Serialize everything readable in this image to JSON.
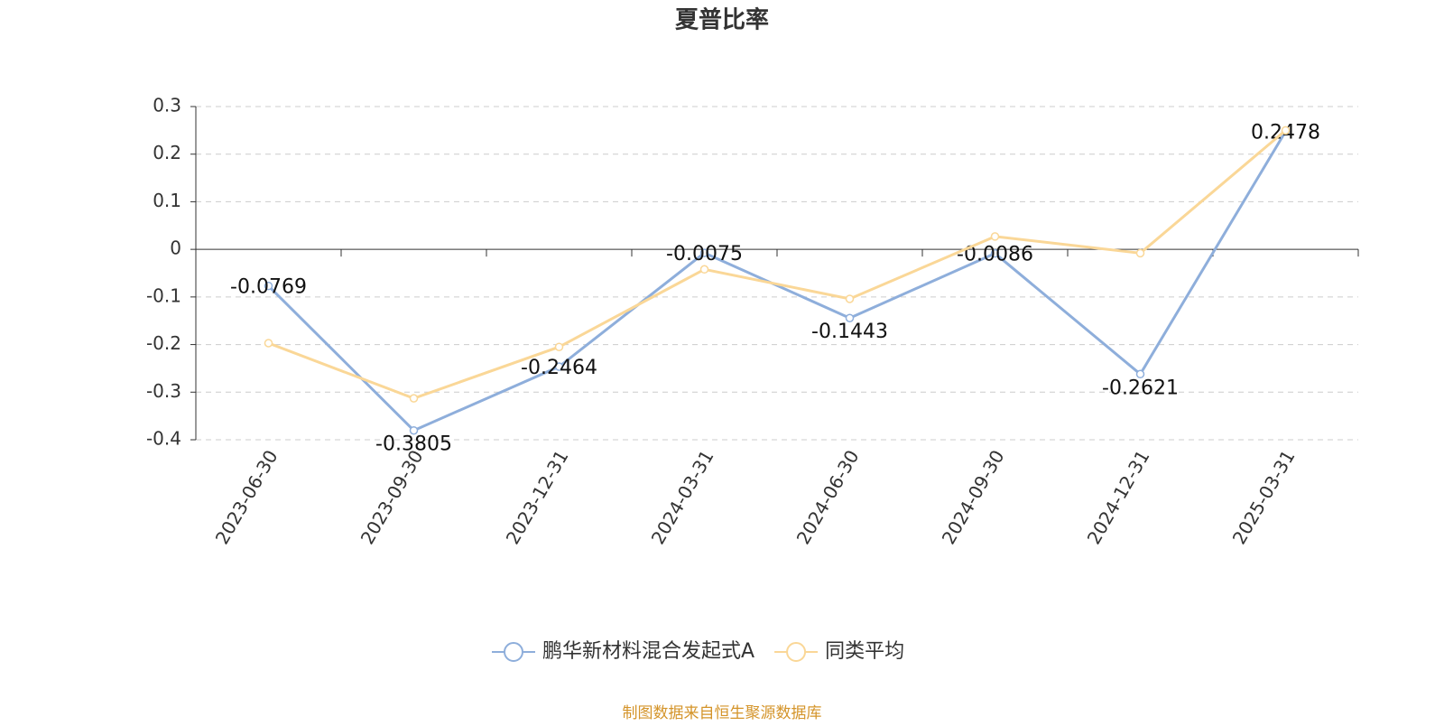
{
  "chart_data": {
    "type": "line",
    "title": "夏普比率",
    "categories": [
      "2023-06-30",
      "2023-09-30",
      "2023-12-31",
      "2024-03-31",
      "2024-06-30",
      "2024-09-30",
      "2024-12-31",
      "2025-03-31"
    ],
    "series": [
      {
        "name": "鹏华新材料混合发起式A",
        "color": "#8eaedb",
        "values": [
          -0.0769,
          -0.3805,
          -0.2464,
          -0.0075,
          -0.1443,
          -0.0086,
          -0.2621,
          0.2478
        ],
        "show_labels": true
      },
      {
        "name": "同类平均",
        "color": "#fad797",
        "values": [
          -0.197,
          -0.313,
          -0.205,
          -0.042,
          -0.104,
          0.027,
          -0.008,
          0.25
        ],
        "show_labels": false
      }
    ],
    "ylim": [
      -0.4,
      0.3
    ],
    "yticks": [
      0.3,
      0.2,
      0.1,
      0,
      -0.1,
      -0.2,
      -0.3,
      -0.4
    ],
    "grid": true,
    "legend": "bottom",
    "source": "制图数据来自恒生聚源数据库"
  }
}
